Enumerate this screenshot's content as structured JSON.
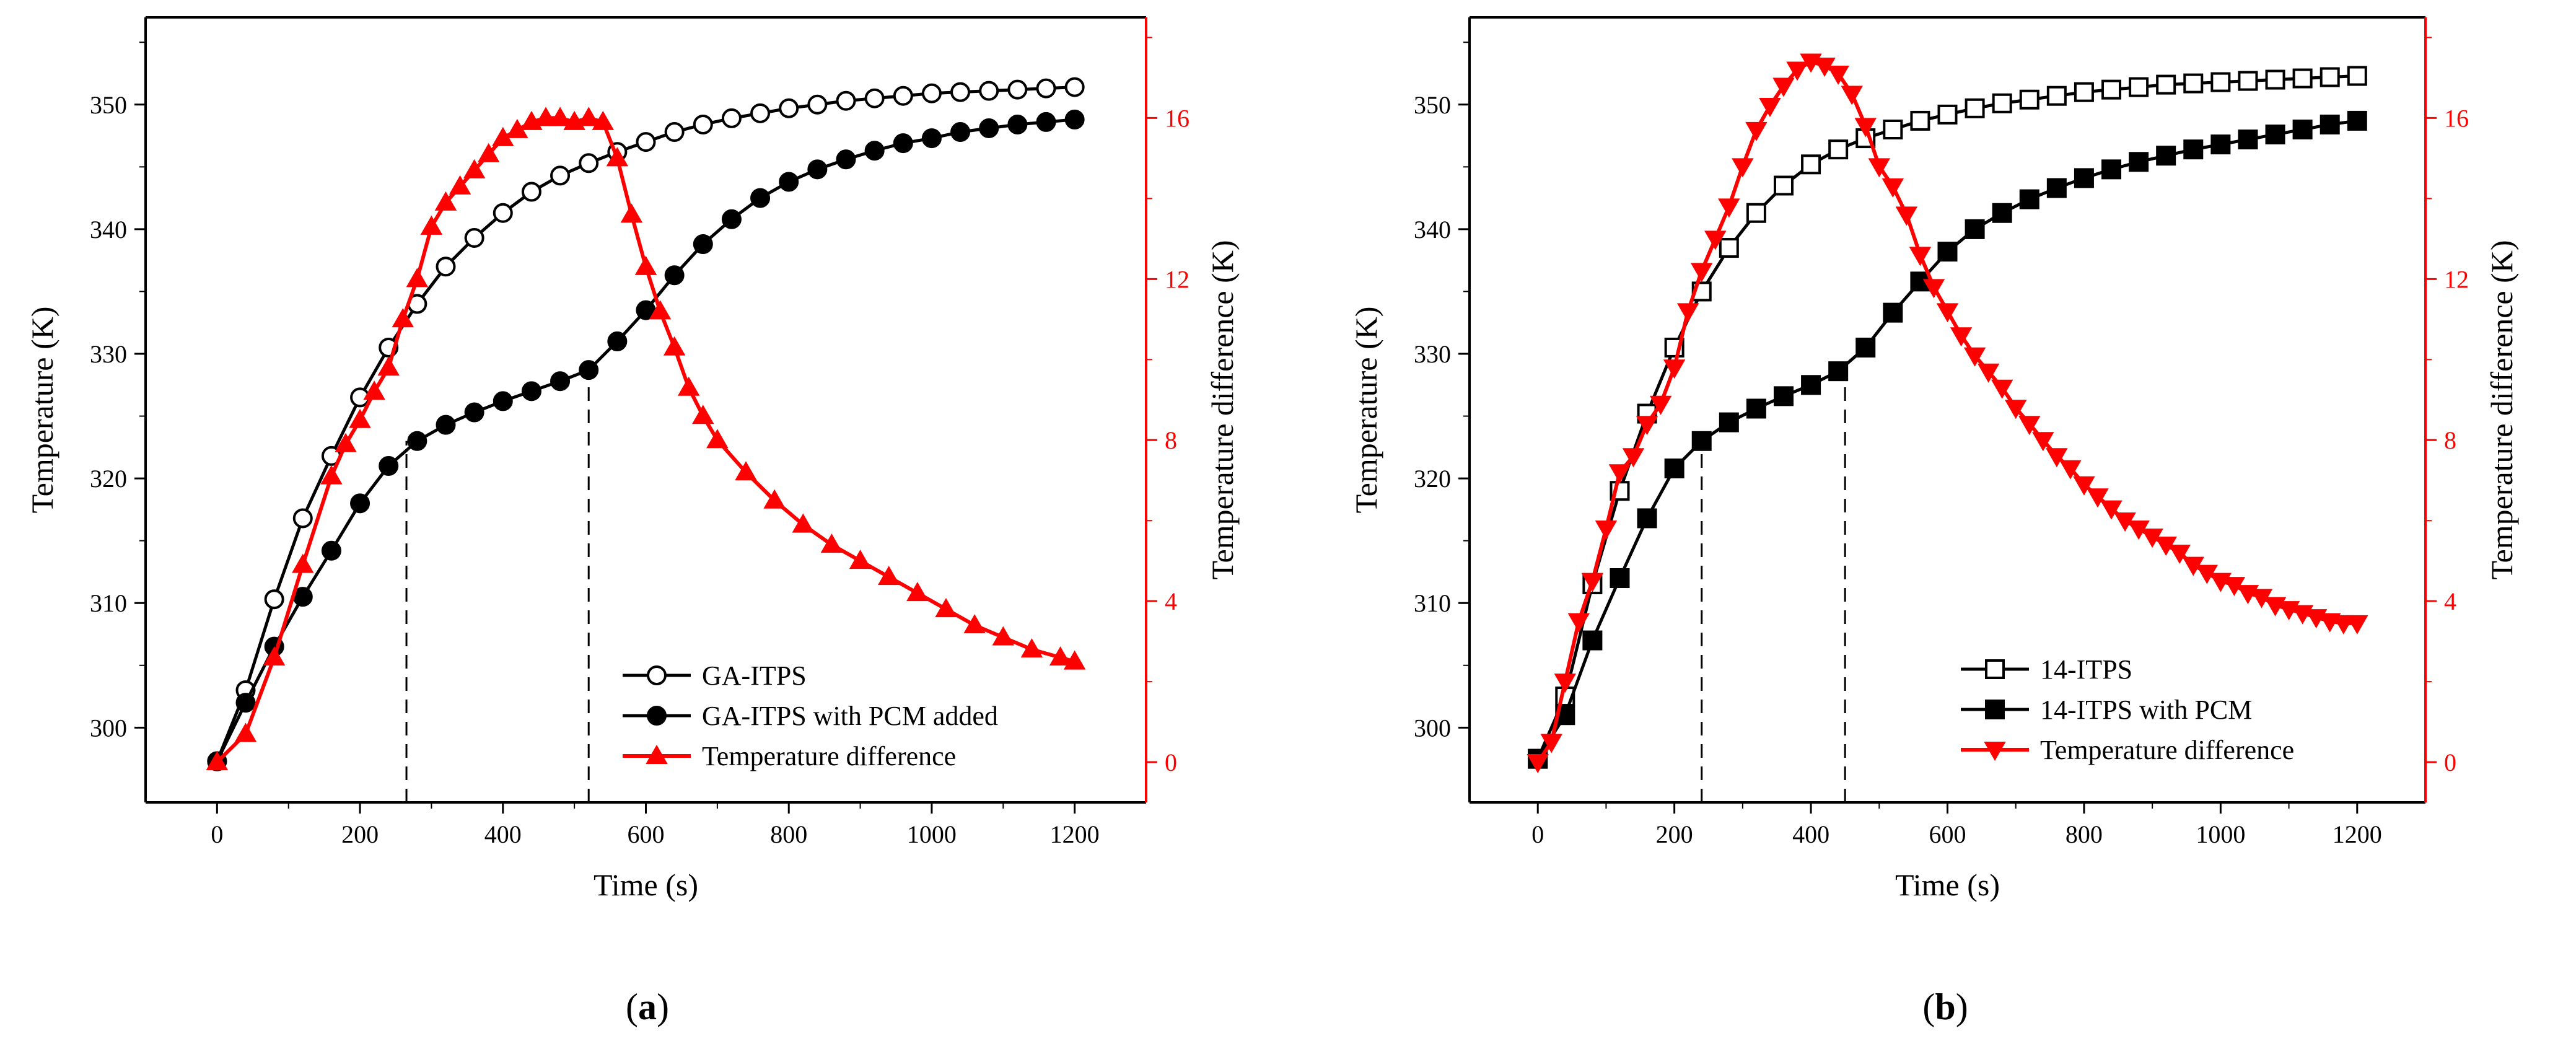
{
  "chart_data": [
    {
      "id": "a",
      "type": "line",
      "panel_label": "a",
      "xlabel": "Time (s)",
      "ylabel_left": "Temperature (K)",
      "ylabel_right": "Temperature difference (K)",
      "xlim": [
        -100,
        1300
      ],
      "ylim_left": [
        294,
        357
      ],
      "ylim_right": [
        -1,
        18.5
      ],
      "xticks": [
        0,
        200,
        400,
        600,
        800,
        1000,
        1200
      ],
      "yticks_left": [
        300,
        310,
        320,
        330,
        340,
        350
      ],
      "yticks_right": [
        0,
        4,
        8,
        12,
        16
      ],
      "legend_position": "bottom-right",
      "phase_lines": [
        {
          "x": 265,
          "y": 323
        },
        {
          "x": 520,
          "y": 329
        }
      ],
      "series": [
        {
          "name": "GA-ITPS",
          "axis": "left",
          "color": "#000000",
          "marker": "circle-open",
          "x": [
            0,
            40,
            80,
            120,
            160,
            200,
            240,
            280,
            320,
            360,
            400,
            440,
            480,
            520,
            560,
            600,
            640,
            680,
            720,
            760,
            800,
            840,
            880,
            920,
            960,
            1000,
            1040,
            1080,
            1120,
            1160,
            1200
          ],
          "y": [
            297.3,
            303,
            310.3,
            316.8,
            321.8,
            326.5,
            330.5,
            334,
            337,
            339.3,
            341.3,
            343,
            344.3,
            345.3,
            346.2,
            347,
            347.8,
            348.4,
            348.9,
            349.3,
            349.7,
            350,
            350.3,
            350.5,
            350.7,
            350.9,
            351,
            351.1,
            351.2,
            351.3,
            351.4
          ]
        },
        {
          "name": "GA-ITPS with PCM added",
          "axis": "left",
          "color": "#000000",
          "marker": "circle-filled",
          "x": [
            0,
            40,
            80,
            120,
            160,
            200,
            240,
            280,
            320,
            360,
            400,
            440,
            480,
            520,
            560,
            600,
            640,
            680,
            720,
            760,
            800,
            840,
            880,
            920,
            960,
            1000,
            1040,
            1080,
            1120,
            1160,
            1200
          ],
          "y": [
            297.3,
            302,
            306.5,
            310.5,
            314.2,
            318,
            321,
            323,
            324.3,
            325.3,
            326.2,
            327,
            327.8,
            328.7,
            331,
            333.5,
            336.3,
            338.8,
            340.8,
            342.5,
            343.8,
            344.8,
            345.6,
            346.3,
            346.9,
            347.3,
            347.8,
            348.1,
            348.4,
            348.6,
            348.8
          ]
        },
        {
          "name": "Temperature difference",
          "axis": "right",
          "color": "#ff0000",
          "marker": "triangle-up-filled",
          "x": [
            0,
            40,
            80,
            120,
            160,
            180,
            200,
            220,
            240,
            260,
            280,
            300,
            320,
            340,
            360,
            380,
            400,
            420,
            440,
            460,
            480,
            500,
            520,
            540,
            560,
            580,
            600,
            620,
            640,
            660,
            680,
            700,
            740,
            780,
            820,
            860,
            900,
            940,
            980,
            1020,
            1060,
            1100,
            1140,
            1180,
            1200
          ],
          "y": [
            0,
            0.7,
            2.6,
            4.9,
            7.1,
            7.9,
            8.5,
            9.2,
            9.8,
            11,
            12,
            13.3,
            13.9,
            14.3,
            14.7,
            15.1,
            15.5,
            15.7,
            15.9,
            16,
            16,
            15.9,
            16,
            15.9,
            15,
            13.6,
            12.3,
            11.2,
            10.3,
            9.3,
            8.6,
            8,
            7.2,
            6.5,
            5.9,
            5.4,
            5,
            4.6,
            4.2,
            3.8,
            3.4,
            3.1,
            2.8,
            2.6,
            2.5
          ]
        }
      ]
    },
    {
      "id": "b",
      "type": "line",
      "panel_label": "b",
      "xlabel": "Time (s)",
      "ylabel_left": "Temperature (K)",
      "ylabel_right": "Temperature difference (K)",
      "xlim": [
        -100,
        1300
      ],
      "ylim_left": [
        294,
        357
      ],
      "ylim_right": [
        -1,
        18.5
      ],
      "xticks": [
        0,
        200,
        400,
        600,
        800,
        1000,
        1200
      ],
      "yticks_left": [
        300,
        310,
        320,
        330,
        340,
        350
      ],
      "yticks_right": [
        0,
        4,
        8,
        12,
        16
      ],
      "legend_position": "bottom-right",
      "phase_lines": [
        {
          "x": 240,
          "y": 323
        },
        {
          "x": 450,
          "y": 329
        }
      ],
      "series": [
        {
          "name": "14-ITPS",
          "axis": "left",
          "color": "#000000",
          "marker": "square-open",
          "x": [
            0,
            40,
            80,
            120,
            160,
            200,
            240,
            280,
            320,
            360,
            400,
            440,
            480,
            520,
            560,
            600,
            640,
            680,
            720,
            760,
            800,
            840,
            880,
            920,
            960,
            1000,
            1040,
            1080,
            1120,
            1160,
            1200
          ],
          "y": [
            297.5,
            302.5,
            311.5,
            319,
            325.2,
            330.5,
            335,
            338.5,
            341.3,
            343.5,
            345.2,
            346.4,
            347.3,
            348,
            348.7,
            349.2,
            349.7,
            350.1,
            350.4,
            350.7,
            351,
            351.2,
            351.4,
            351.6,
            351.7,
            351.8,
            351.9,
            352,
            352.1,
            352.2,
            352.3
          ]
        },
        {
          "name": "14-ITPS with PCM",
          "axis": "left",
          "color": "#000000",
          "marker": "square-filled",
          "x": [
            0,
            40,
            80,
            120,
            160,
            200,
            240,
            280,
            320,
            360,
            400,
            440,
            480,
            520,
            560,
            600,
            640,
            680,
            720,
            760,
            800,
            840,
            880,
            920,
            960,
            1000,
            1040,
            1080,
            1120,
            1160,
            1200
          ],
          "y": [
            297.5,
            301,
            307,
            312,
            316.8,
            320.8,
            323,
            324.5,
            325.6,
            326.6,
            327.5,
            328.6,
            330.5,
            333.3,
            335.8,
            338.2,
            340,
            341.3,
            342.4,
            343.3,
            344.1,
            344.8,
            345.4,
            345.9,
            346.4,
            346.8,
            347.2,
            347.6,
            348,
            348.4,
            348.7
          ]
        },
        {
          "name": "Temperature difference",
          "axis": "right",
          "color": "#ff0000",
          "marker": "triangle-down-filled",
          "x": [
            0,
            20,
            40,
            60,
            80,
            100,
            120,
            140,
            160,
            180,
            200,
            220,
            240,
            260,
            280,
            300,
            320,
            340,
            360,
            380,
            400,
            420,
            440,
            460,
            480,
            500,
            520,
            540,
            560,
            580,
            600,
            620,
            640,
            660,
            680,
            700,
            720,
            740,
            760,
            780,
            800,
            820,
            840,
            860,
            880,
            900,
            920,
            940,
            960,
            980,
            1000,
            1020,
            1040,
            1060,
            1080,
            1100,
            1120,
            1140,
            1160,
            1180,
            1200
          ],
          "y": [
            0,
            0.5,
            2,
            3.5,
            4.5,
            5.8,
            7.2,
            7.6,
            8.4,
            8.9,
            9.8,
            11.2,
            12.2,
            13,
            13.8,
            14.8,
            15.7,
            16.3,
            16.8,
            17.2,
            17.4,
            17.3,
            17.1,
            16.6,
            15.8,
            14.8,
            14.3,
            13.6,
            12.6,
            11.8,
            11.2,
            10.6,
            10.1,
            9.7,
            9.3,
            8.8,
            8.4,
            8.0,
            7.6,
            7.3,
            6.9,
            6.6,
            6.3,
            6.0,
            5.8,
            5.6,
            5.4,
            5.2,
            4.9,
            4.7,
            4.5,
            4.4,
            4.2,
            4.1,
            3.9,
            3.8,
            3.7,
            3.6,
            3.5,
            3.45,
            3.45
          ]
        }
      ]
    }
  ]
}
